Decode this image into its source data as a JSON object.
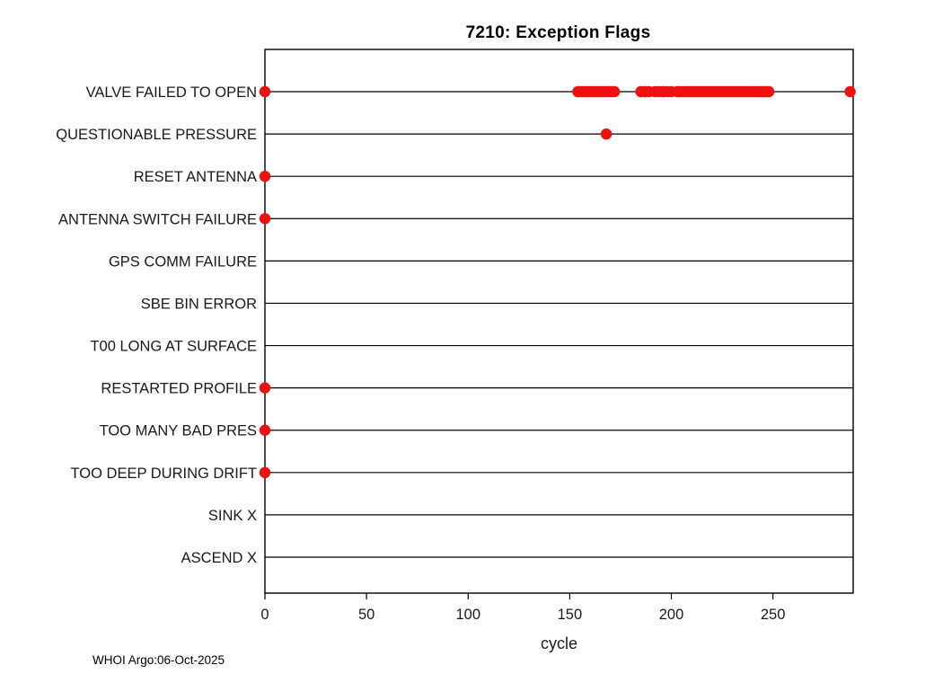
{
  "chart_data": {
    "type": "scatter",
    "title": "7210: Exception Flags",
    "xlabel": "cycle",
    "footer": "WHOI Argo:06-Oct-2025",
    "xlim": [
      0,
      289.5
    ],
    "xticks": [
      0,
      50,
      100,
      150,
      200,
      250
    ],
    "grid": "horizontal-category-lines",
    "legend": "none",
    "marker_color": "#ee1111",
    "axis_color": "#000000",
    "categories": [
      "VALVE FAILED TO OPEN",
      "QUESTIONABLE PRESSURE",
      "RESET ANTENNA",
      "ANTENNA SWITCH FAILURE",
      "GPS COMM FAILURE",
      "SBE BIN ERROR",
      "T00 LONG AT SURFACE",
      "RESTARTED PROFILE",
      "TOO MANY BAD PRES",
      "TOO DEEP DURING DRIFT",
      "SINK X",
      "ASCEND X"
    ],
    "series": [
      {
        "category": "VALVE FAILED TO OPEN",
        "cycles": [
          0,
          154,
          155,
          156,
          157,
          158,
          159,
          160,
          161,
          162,
          163,
          164,
          165,
          166,
          167,
          168,
          169,
          170,
          171,
          172,
          185,
          187,
          189,
          192,
          194,
          196,
          198,
          200,
          203,
          204,
          205,
          206,
          207,
          208,
          209,
          210,
          211,
          212,
          213,
          214,
          215,
          216,
          217,
          218,
          219,
          220,
          221,
          222,
          223,
          224,
          225,
          226,
          227,
          228,
          229,
          230,
          231,
          232,
          233,
          234,
          235,
          236,
          237,
          238,
          239,
          240,
          241,
          242,
          243,
          244,
          245,
          246,
          247,
          248,
          288
        ]
      },
      {
        "category": "QUESTIONABLE PRESSURE",
        "cycles": [
          168
        ]
      },
      {
        "category": "RESET ANTENNA",
        "cycles": [
          0
        ]
      },
      {
        "category": "ANTENNA SWITCH FAILURE",
        "cycles": [
          0
        ]
      },
      {
        "category": "GPS COMM FAILURE",
        "cycles": []
      },
      {
        "category": "SBE BIN ERROR",
        "cycles": []
      },
      {
        "category": "T00 LONG AT SURFACE",
        "cycles": []
      },
      {
        "category": "RESTARTED PROFILE",
        "cycles": [
          0
        ]
      },
      {
        "category": "TOO MANY BAD PRES",
        "cycles": [
          0
        ]
      },
      {
        "category": "TOO DEEP DURING DRIFT",
        "cycles": [
          0
        ]
      },
      {
        "category": "SINK X",
        "cycles": []
      },
      {
        "category": "ASCEND X",
        "cycles": []
      }
    ]
  }
}
